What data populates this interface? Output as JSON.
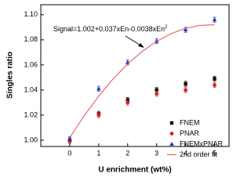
{
  "chart_data": {
    "type": "scatter",
    "xlabel": "U enrichment (wt%)",
    "ylabel": "Singles ratio",
    "annotation": "Signal=1.002+0.037xEn-0.0038xEn",
    "annotation_sup": "2",
    "xlim": [
      -1,
      5.5
    ],
    "xticks": [
      0,
      1,
      2,
      3,
      4,
      5
    ],
    "ylim": [
      0.995,
      1.108
    ],
    "yticks": [
      {
        "value": 1.0,
        "label": "1.00"
      },
      {
        "value": 1.02,
        "label": "1.02"
      },
      {
        "value": 1.04,
        "label": "1.04"
      },
      {
        "value": 1.06,
        "label": "1.06"
      },
      {
        "value": 1.08,
        "label": "1.08"
      },
      {
        "value": 1.1,
        "label": "1.10"
      }
    ],
    "legend": "lower right",
    "series": [
      {
        "name": "FNEM",
        "color": "#000000",
        "marker": "square",
        "x": [
          0,
          1,
          2,
          3,
          4,
          5
        ],
        "values": [
          1.0,
          1.021,
          1.032,
          1.04,
          1.045,
          1.049
        ],
        "errors": [
          0.002,
          0.002,
          0.002,
          0.002,
          0.002,
          0.002
        ]
      },
      {
        "name": "PNAR",
        "color": "#e02020",
        "marker": "circle",
        "x": [
          0,
          1,
          2,
          3,
          4,
          5
        ],
        "values": [
          0.999,
          1.02,
          1.03,
          1.037,
          1.04,
          1.044
        ],
        "errors": [
          0.002,
          0.002,
          0.002,
          0.002,
          0.002,
          0.002
        ]
      },
      {
        "name": "FNEMxPNAR",
        "color": "#2030c0",
        "marker": "triangle",
        "x": [
          0,
          1,
          2,
          3,
          4,
          5
        ],
        "values": [
          1.001,
          1.041,
          1.062,
          1.079,
          1.088,
          1.096
        ],
        "errors": [
          0.002,
          0.002,
          0.002,
          0.002,
          0.002,
          0.002
        ]
      },
      {
        "name": "2nd order fit",
        "color": "#e05050",
        "marker": "line",
        "x": [
          0,
          0.5,
          1,
          1.5,
          2,
          2.5,
          3,
          3.5,
          4,
          4.5,
          5
        ],
        "values": [
          1.002,
          1.01955,
          1.0352,
          1.04895,
          1.0608,
          1.07075,
          1.0788,
          1.08495,
          1.0892,
          1.09155,
          1.092
        ]
      }
    ]
  }
}
